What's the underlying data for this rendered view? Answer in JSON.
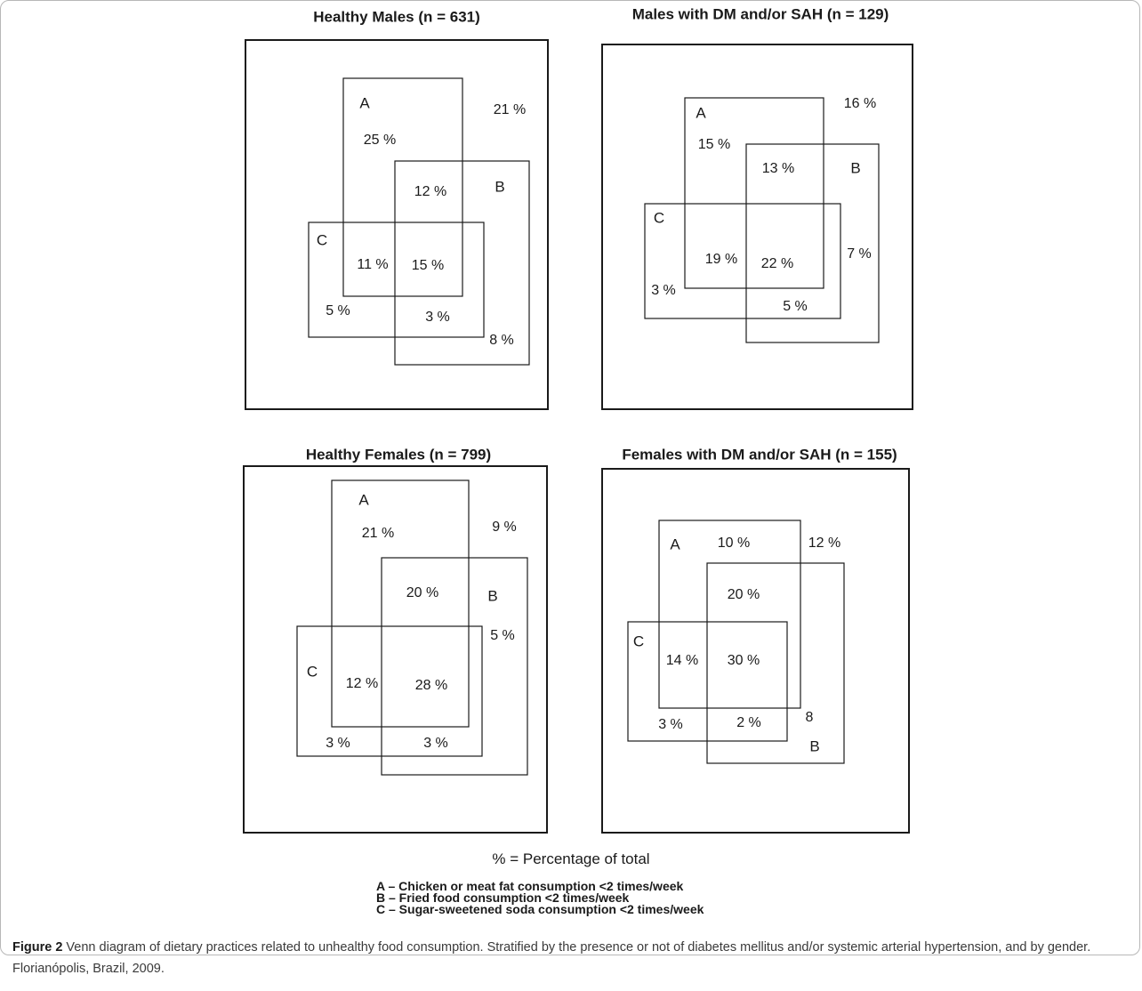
{
  "panels": [
    {
      "id": "healthy-males",
      "title": "Healthy Males (n = 631)",
      "labels": {
        "A": "A",
        "B": "B",
        "C": "C"
      },
      "regions": [
        "25 %",
        "21 %",
        "12 %",
        "11 %",
        "15 %",
        "5 %",
        "3 %",
        "8 %"
      ]
    },
    {
      "id": "males-dm-sah",
      "title": "Males with DM and/or SAH (n = 129)",
      "labels": {
        "A": "A",
        "B": "B",
        "C": "C"
      },
      "regions": [
        "15 %",
        "16 %",
        "13 %",
        "19 %",
        "22 %",
        "7 %",
        "3 %",
        "5 %"
      ]
    },
    {
      "id": "healthy-females",
      "title": "Healthy Females (n = 799)",
      "labels": {
        "A": "A",
        "B": "B",
        "C": "C"
      },
      "regions": [
        "21 %",
        "9 %",
        "20 %",
        "5 %",
        "12 %",
        "28 %",
        "3 %",
        "3 %"
      ]
    },
    {
      "id": "females-dm-sah",
      "title": "Females with DM and/or SAH (n = 155)",
      "labels": {
        "A": "A",
        "B": "B",
        "C": "C"
      },
      "regions": [
        "10 %",
        "12 %",
        "20 %",
        "14 %",
        "30 %",
        "3 %",
        "2 %",
        "8"
      ]
    }
  ],
  "note": "% = Percentage of total",
  "legend": [
    "A – Chicken or meat fat consumption <2 times/week",
    "B – Fried food consumption <2 times/week",
    "C – Sugar-sweetened soda consumption <2 times/week"
  ],
  "caption": {
    "label": "Figure 2",
    "text": " Venn diagram of dietary practices related to unhealthy food consumption. Stratified by the presence or not of diabetes mellitus and/or systemic arterial hypertension, and by gender. Florianópolis, Brazil, 2009."
  }
}
